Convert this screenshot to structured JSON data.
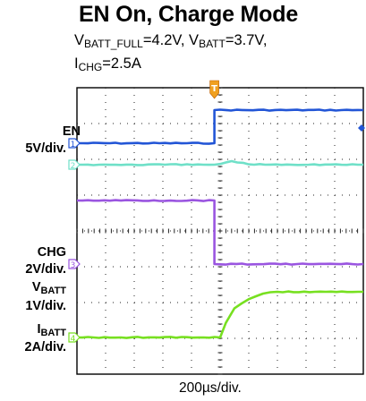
{
  "chart_data": {
    "type": "line",
    "title": "EN On, Charge Mode",
    "subtitle": {
      "line1": {
        "v1": "V",
        "sub1": "BATT_FULL",
        "mid": "=4.2V, V",
        "sub2": "BATT",
        "end": "=3.7V,"
      },
      "line2": {
        "v1": "I",
        "sub1": "CHG",
        "end": "=2.5A"
      }
    },
    "xlabel": "200µs/div.",
    "x_divisions": 10,
    "y_divisions": 8,
    "trigger_marker": "T",
    "series": [
      {
        "name": "EN",
        "unit": "5V/div.",
        "color": "#2255d6",
        "marker": "1",
        "x": [
          0,
          4.8,
          4.8,
          10
        ],
        "y": [
          0,
          0,
          5,
          5
        ]
      },
      {
        "name": "VBATT",
        "unit": "1V/div.",
        "color": "#6fe0c8",
        "marker": "2",
        "x": [
          0,
          4.8,
          5.0,
          5.4,
          6.0,
          10
        ],
        "y": [
          3.7,
          3.7,
          3.72,
          3.8,
          3.71,
          3.7
        ]
      },
      {
        "name": "CHG",
        "unit": "2V/div.",
        "color": "#9a55e0",
        "marker": "3",
        "x": [
          0,
          4.8,
          4.8,
          10
        ],
        "y": [
          5,
          5,
          0,
          0
        ]
      },
      {
        "name": "IBATT",
        "unit": "2A/div.",
        "color": "#77e020",
        "marker": "4",
        "x": [
          0,
          5.0,
          5.2,
          5.5,
          6.0,
          6.5,
          7.0,
          10
        ],
        "y": [
          0,
          0,
          0.8,
          1.6,
          2.1,
          2.4,
          2.5,
          2.5
        ]
      }
    ],
    "labels": {
      "en": {
        "name": "EN",
        "unit": "5V/div."
      },
      "chg": {
        "name": "CHG",
        "unit": "2V/div."
      },
      "vbatt": {
        "name": "V",
        "sub": "BATT",
        "unit": "1V/div."
      },
      "ibatt": {
        "name": "I",
        "sub": "BATT",
        "unit": "2A/div."
      }
    }
  }
}
